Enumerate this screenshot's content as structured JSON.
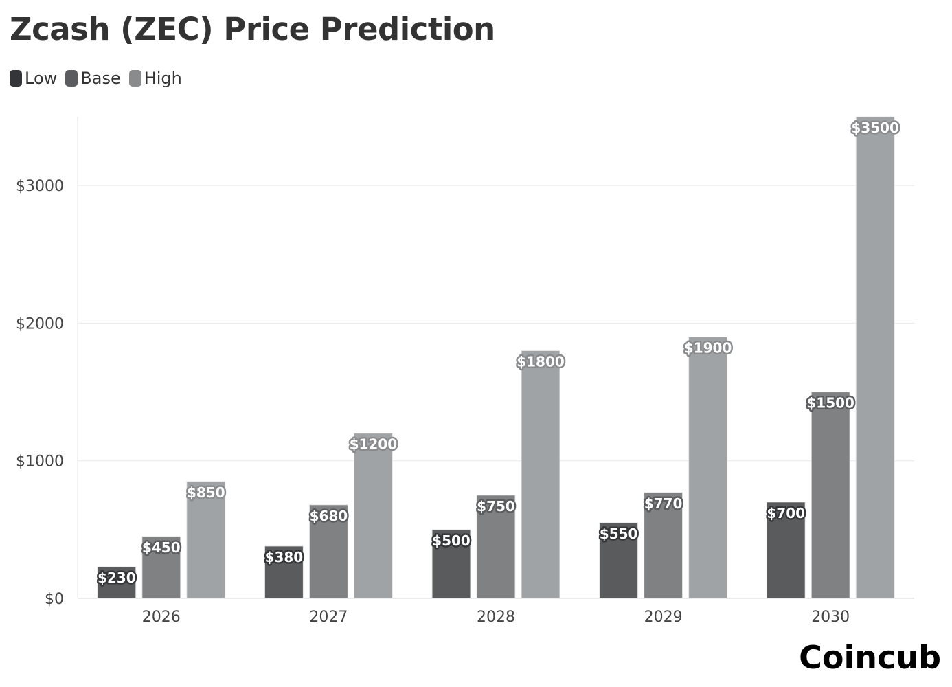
{
  "chart_data": {
    "type": "bar",
    "title": "Zcash (ZEC) Price Prediction",
    "categories": [
      "2026",
      "2027",
      "2028",
      "2029",
      "2030"
    ],
    "series": [
      {
        "name": "Low",
        "values": [
          230,
          380,
          500,
          550,
          700
        ],
        "color": "#5a5b5d",
        "legend_color": "#343538"
      },
      {
        "name": "Base",
        "values": [
          450,
          680,
          750,
          770,
          1500
        ],
        "color": "#808183",
        "legend_color": "#5b5c5f"
      },
      {
        "name": "High",
        "values": [
          850,
          1200,
          1800,
          1900,
          3500
        ],
        "color": "#a0a3a6",
        "legend_color": "#898b8d"
      }
    ],
    "data_labels": [
      [
        "$230",
        "$380",
        "$500",
        "$550",
        "$700"
      ],
      [
        "$450",
        "$680",
        "$750",
        "$770",
        "$1500"
      ],
      [
        "$850",
        "$1200",
        "$1800",
        "$1900",
        "$3500"
      ]
    ],
    "yticks": [
      0,
      1000,
      2000,
      3000
    ],
    "ytick_labels": [
      "$0",
      "$1000",
      "$2000",
      "$3000"
    ],
    "ylim": [
      0,
      3500
    ],
    "xlabel": "",
    "ylabel": "",
    "grid": true,
    "legend_position": "top-left"
  },
  "brand": "Coincub"
}
